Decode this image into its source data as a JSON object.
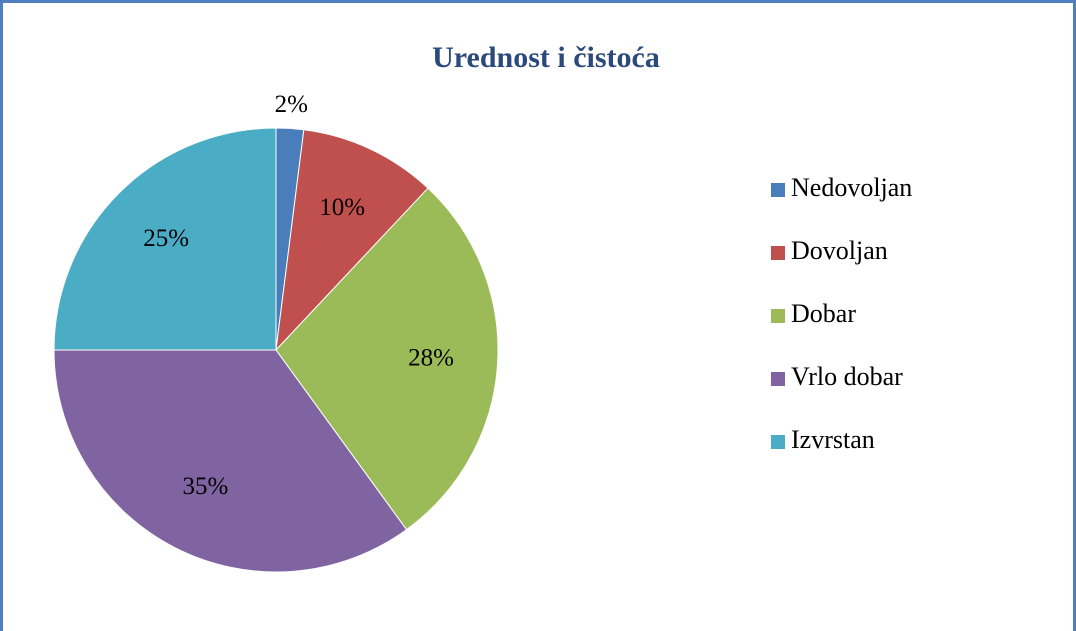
{
  "chart_data": {
    "type": "pie",
    "title": "Urednost i čistoća",
    "categories": [
      "Nedovoljan",
      "Dovoljan",
      "Dobar",
      "Vrlo dobar",
      "Izvrstan"
    ],
    "values": [
      2,
      10,
      28,
      35,
      25
    ],
    "value_labels": [
      "2%",
      "10%",
      "28%",
      "35%",
      "25%"
    ],
    "colors": [
      "#4a7ebb",
      "#c0504d",
      "#9bbb59",
      "#8064a2",
      "#4bacc6"
    ],
    "legend": "right"
  }
}
